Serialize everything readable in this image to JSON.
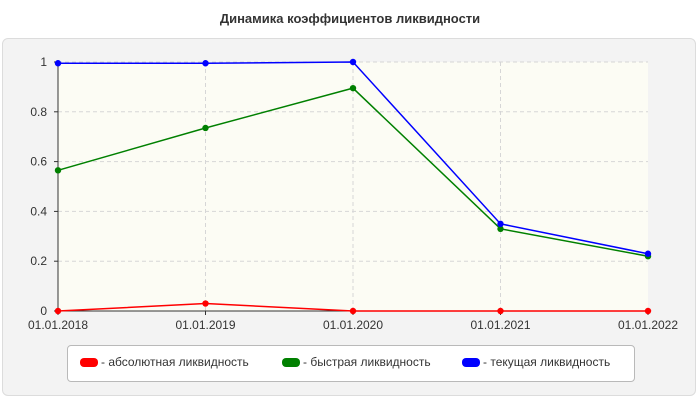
{
  "chart_data": {
    "type": "line",
    "title": "Динамика коэффициентов ликвидности",
    "x": [
      "01.01.2018",
      "01.01.2019",
      "01.01.2020",
      "01.01.2021",
      "01.01.2022"
    ],
    "ylim": [
      0,
      1
    ],
    "yticks": [
      "0",
      "0.2",
      "0.4",
      "0.6",
      "0.8",
      "1"
    ],
    "grid": true,
    "legend_position": "bottom",
    "series": [
      {
        "name": "- абсолютная ликвидность",
        "color": "#ff0000",
        "values": [
          0.0,
          0.03,
          0.0,
          0.0,
          0.0
        ]
      },
      {
        "name": "- быстрая ликвидность",
        "color": "#008000",
        "values": [
          0.565,
          0.735,
          0.895,
          0.33,
          0.22
        ]
      },
      {
        "name": "- текущая ликвидность",
        "color": "#0000ff",
        "values": [
          0.995,
          0.995,
          1.0,
          0.35,
          0.23
        ]
      }
    ]
  }
}
